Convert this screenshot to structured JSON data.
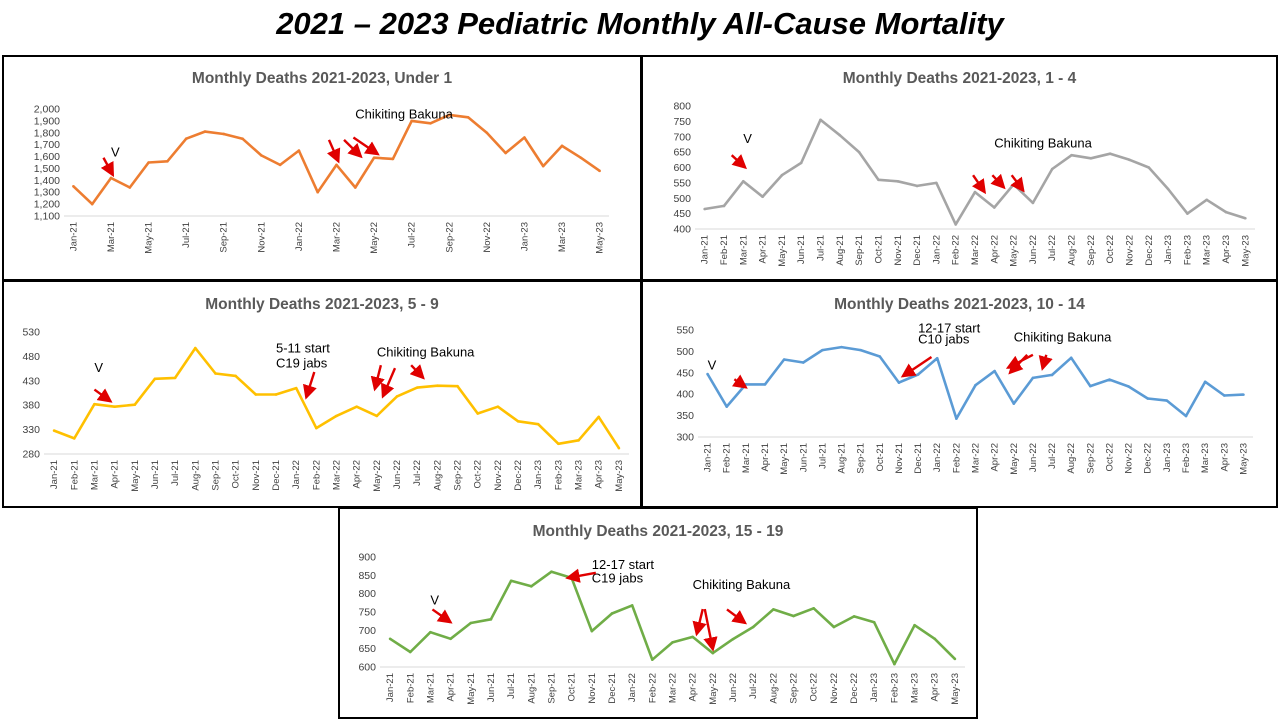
{
  "page": {
    "title": "2021 – 2023 Pediatric Monthly All-Cause Mortality"
  },
  "colors": {
    "arrow": "#e00000",
    "axis": "#d9d9d9"
  },
  "chart_data": [
    {
      "type": "line",
      "title": "Monthly Deaths 2021-2023, Under 1",
      "color": "#ed7d31",
      "x": [
        "Jan-21",
        "Feb-21",
        "Mar-21",
        "Apr-21",
        "May-21",
        "Jun-21",
        "Jul-21",
        "Aug-21",
        "Sep-21",
        "Oct-21",
        "Nov-21",
        "Dec-21",
        "Jan-22",
        "Feb-22",
        "Mar-22",
        "Apr-22",
        "May-22",
        "Jun-22",
        "Jul-22",
        "Aug-22",
        "Sep-22",
        "Oct-22",
        "Nov-22",
        "Dec-22",
        "Jan-23",
        "Feb-23",
        "Mar-23",
        "Apr-23",
        "May-23"
      ],
      "x_tick_labels": [
        "Jan-21",
        "Mar-21",
        "May-21",
        "Jul-21",
        "Sep-21",
        "Nov-21",
        "Jan-22",
        "Mar-22",
        "May-22",
        "Jul-22",
        "Sep-22",
        "Nov-22",
        "Jan-23",
        "Mar-23",
        "May-23"
      ],
      "x_tick_every": 2,
      "values": [
        1350,
        1200,
        1420,
        1340,
        1550,
        1560,
        1750,
        1810,
        1790,
        1750,
        1610,
        1530,
        1650,
        1300,
        1530,
        1340,
        1590,
        1580,
        1900,
        1880,
        1950,
        1930,
        1800,
        1630,
        1760,
        1520,
        1690,
        1590,
        1480
      ],
      "ylim": [
        1100,
        2000
      ],
      "y_ticks": [
        "1,100",
        "1,200",
        "1,300",
        "1,400",
        "1,500",
        "1,600",
        "1,700",
        "1,800",
        "1,900",
        "2,000"
      ],
      "grid": false,
      "annotations": [
        {
          "text": "V",
          "x": "Mar-21",
          "y": 1600
        },
        {
          "text": "Chikiting Bakuna",
          "x": "Apr-22",
          "y": 1920
        }
      ]
    },
    {
      "type": "line",
      "title": "Monthly Deaths 2021-2023, 1 - 4",
      "color": "#a5a5a5",
      "x": [
        "Jan-21",
        "Feb-21",
        "Mar-21",
        "Apr-21",
        "May-21",
        "Jun-21",
        "Jul-21",
        "Aug-21",
        "Sep-21",
        "Oct-21",
        "Nov-21",
        "Dec-21",
        "Jan-22",
        "Feb-22",
        "Mar-22",
        "Apr-22",
        "May-22",
        "Jun-22",
        "Jul-22",
        "Aug-22",
        "Sep-22",
        "Oct-22",
        "Nov-22",
        "Dec-22",
        "Jan-23",
        "Feb-23",
        "Mar-23",
        "Apr-23",
        "May-23"
      ],
      "x_tick_labels": [
        "Jan-21",
        "Feb-21",
        "Mar-21",
        "Apr-21",
        "May-21",
        "Jun-21",
        "Jul-21",
        "Aug-21",
        "Sep-21",
        "Oct-21",
        "Nov-21",
        "Dec-21",
        "Jan-22",
        "Feb-22",
        "Mar-22",
        "Apr-22",
        "May-22",
        "Jun-22",
        "Jul-22",
        "Aug-22",
        "Sep-22",
        "Oct-22",
        "Nov-22",
        "Dec-22",
        "Jan-23",
        "Feb-23",
        "Mar-23",
        "Apr-23",
        "May-23"
      ],
      "x_tick_every": 1,
      "values": [
        465,
        475,
        555,
        505,
        575,
        615,
        755,
        705,
        650,
        560,
        555,
        540,
        550,
        415,
        520,
        470,
        545,
        485,
        595,
        640,
        630,
        645,
        625,
        600,
        530,
        450,
        495,
        455,
        435
      ],
      "ylim": [
        400,
        800
      ],
      "y_ticks": [
        "400",
        "450",
        "500",
        "550",
        "600",
        "650",
        "700",
        "750",
        "800"
      ],
      "grid": false,
      "annotations": [
        {
          "text": "V",
          "x": "Mar-21",
          "y": 680
        },
        {
          "text": "Chikiting Bakuna",
          "x": "Apr-22",
          "y": 665
        }
      ]
    },
    {
      "type": "line",
      "title": "Monthly Deaths 2021-2023, 5 - 9",
      "color": "#ffc000",
      "x": [
        "Jan-21",
        "Feb-21",
        "Mar-21",
        "Apr-21",
        "May-21",
        "Jun-21",
        "Jul-21",
        "Aug-21",
        "Sep-21",
        "Oct-21",
        "Nov-21",
        "Dec-21",
        "Jan-22",
        "Feb-22",
        "Mar-22",
        "Apr-22",
        "May-22",
        "Jun-22",
        "Jul-22",
        "Aug-22",
        "Sep-22",
        "Oct-22",
        "Nov-22",
        "Dec-22",
        "Jan-23",
        "Feb-23",
        "Mar-23",
        "Apr-23",
        "May-23"
      ],
      "x_tick_labels": [
        "Jan-21",
        "Feb-21",
        "Mar-21",
        "Apr-21",
        "May-21",
        "Jun-21",
        "Jul-21",
        "Aug-21",
        "Sep-21",
        "Oct-21",
        "Nov-21",
        "Dec-21",
        "Jan-22",
        "Feb-22",
        "Mar-22",
        "Apr-22",
        "May-22",
        "Jun-22",
        "Jul-22",
        "Aug-22",
        "Sep-22",
        "Oct-22",
        "Nov-22",
        "Dec-22",
        "Jan-23",
        "Feb-23",
        "Mar-23",
        "Apr-23",
        "May-23"
      ],
      "x_tick_every": 1,
      "values": [
        328,
        312,
        382,
        377,
        381,
        434,
        436,
        497,
        445,
        440,
        402,
        402,
        415,
        333,
        358,
        377,
        358,
        398,
        416,
        420,
        419,
        363,
        377,
        347,
        341,
        301,
        308,
        356,
        292
      ],
      "ylim": [
        280,
        530
      ],
      "y_ticks": [
        "280",
        "330",
        "380",
        "430",
        "480",
        "530"
      ],
      "grid": false,
      "annotations": [
        {
          "text": "V",
          "x": "Mar-21",
          "y": 448
        },
        {
          "text": "5-11 start",
          "x": "Dec-21",
          "y": 488
        },
        {
          "text": "C19 jabs",
          "x": "Dec-21",
          "y": 457
        },
        {
          "text": "Chikiting Bakuna",
          "x": "May-22",
          "y": 480
        }
      ]
    },
    {
      "type": "line",
      "title": "Monthly Deaths 2021-2023, 10 - 14",
      "color": "#5b9bd5",
      "x": [
        "Jan-21",
        "Feb-21",
        "Mar-21",
        "Apr-21",
        "May-21",
        "Jun-21",
        "Jul-21",
        "Aug-21",
        "Sep-21",
        "Oct-21",
        "Nov-21",
        "Dec-21",
        "Jan-22",
        "Feb-22",
        "Mar-22",
        "Apr-22",
        "May-22",
        "Jun-22",
        "Jul-22",
        "Aug-22",
        "Sep-22",
        "Oct-22",
        "Nov-22",
        "Dec-22",
        "Jan-23",
        "Feb-23",
        "Mar-23",
        "Apr-23",
        "May-23"
      ],
      "x_tick_labels": [
        "Jan-21",
        "Feb-21",
        "Mar-21",
        "Apr-21",
        "May-21",
        "Jun-21",
        "Jul-21",
        "Aug-21",
        "Sep-21",
        "Oct-21",
        "Nov-21",
        "Dec-21",
        "Jan-22",
        "Feb-22",
        "Mar-22",
        "Apr-22",
        "May-22",
        "Jun-22",
        "Jul-22",
        "Aug-22",
        "Sep-22",
        "Oct-22",
        "Nov-22",
        "Dec-22",
        "Jan-23",
        "Feb-23",
        "Mar-23",
        "Apr-23",
        "May-23"
      ],
      "x_tick_every": 1,
      "values": [
        447,
        371,
        423,
        423,
        481,
        474,
        503,
        510,
        503,
        488,
        427,
        446,
        484,
        343,
        421,
        454,
        378,
        438,
        445,
        485,
        419,
        434,
        418,
        390,
        385,
        349,
        429,
        397,
        399
      ],
      "ylim": [
        300,
        550
      ],
      "y_ticks": [
        "300",
        "350",
        "400",
        "450",
        "500",
        "550"
      ],
      "grid": false,
      "annotations": [
        {
          "text": "V",
          "x": "Jan-21",
          "y": 458
        },
        {
          "text": "12-17 start",
          "x": "Dec-21",
          "y": 544
        },
        {
          "text": "C10 jabs",
          "x": "Dec-21",
          "y": 518
        },
        {
          "text": "Chikiting Bakuna",
          "x": "May-22",
          "y": 523
        }
      ]
    },
    {
      "type": "line",
      "title": "Monthly Deaths 2021-2023, 15 - 19",
      "color": "#70ad47",
      "x": [
        "Jan-21",
        "Feb-21",
        "Mar-21",
        "Apr-21",
        "May-21",
        "Jun-21",
        "Jul-21",
        "Aug-21",
        "Sep-21",
        "Oct-21",
        "Nov-21",
        "Dec-21",
        "Jan-22",
        "Feb-22",
        "Mar-22",
        "Apr-22",
        "May-22",
        "Jun-22",
        "Jul-22",
        "Aug-22",
        "Sep-22",
        "Oct-22",
        "Nov-22",
        "Dec-22",
        "Jan-23",
        "Feb-23",
        "Mar-23",
        "Apr-23",
        "May-23"
      ],
      "x_tick_labels": [
        "Jan-21",
        "Feb-21",
        "Mar-21",
        "Apr-21",
        "May-21",
        "Jun-21",
        "Jul-21",
        "Aug-21",
        "Sep-21",
        "Oct-21",
        "Nov-21",
        "Dec-21",
        "Jan-22",
        "Feb-22",
        "Mar-22",
        "Apr-22",
        "May-22",
        "Jun-22",
        "Jul-22",
        "Aug-22",
        "Sep-22",
        "Oct-22",
        "Nov-22",
        "Dec-22",
        "Jan-23",
        "Feb-23",
        "Mar-23",
        "Apr-23",
        "May-23"
      ],
      "x_tick_every": 1,
      "values": [
        677,
        641,
        695,
        677,
        720,
        730,
        835,
        820,
        860,
        843,
        698,
        746,
        768,
        620,
        667,
        682,
        638,
        676,
        709,
        757,
        739,
        760,
        709,
        738,
        722,
        608,
        714,
        677,
        622
      ],
      "ylim": [
        600,
        900
      ],
      "y_ticks": [
        "600",
        "650",
        "700",
        "750",
        "800",
        "850",
        "900"
      ],
      "grid": false,
      "annotations": [
        {
          "text": "V",
          "x": "Mar-21",
          "y": 770
        },
        {
          "text": "12-17 start",
          "x": "Nov-21",
          "y": 867
        },
        {
          "text": "C19 jabs",
          "x": "Nov-21",
          "y": 830
        },
        {
          "text": "Chikiting Bakuna",
          "x": "Apr-22",
          "y": 813
        }
      ]
    }
  ]
}
